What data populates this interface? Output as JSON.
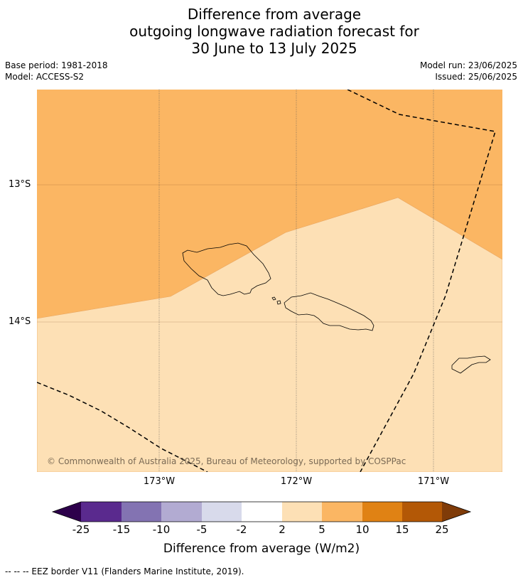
{
  "title_lines": [
    "Difference from average",
    "outgoing longwave radiation forecast for",
    "30 June to 13 July 2025"
  ],
  "meta": {
    "base_period": "Base period: 1981-2018",
    "model": "Model: ACCESS-S2",
    "model_run": "Model run: 23/06/2025",
    "issued": "Issued: 25/06/2025"
  },
  "map": {
    "lat_labels": [
      "13°S",
      "14°S"
    ],
    "lon_labels": [
      "173°W",
      "172°W",
      "171°W"
    ],
    "copyright": "© Commonwealth of Australia 2025, Bureau of Meteorology, supported by COSPPac",
    "colors": {
      "band_5_10": "#fbb663",
      "band_2_5": "#fde0b5",
      "coast": "#000000",
      "eez": "#000000"
    }
  },
  "colorbar": {
    "ticks": [
      "-25",
      "-15",
      "-10",
      "-5",
      "-2",
      "2",
      "5",
      "10",
      "15",
      "25"
    ],
    "colors": [
      "#2d004b",
      "#5a2a8e",
      "#8373b2",
      "#b2abd2",
      "#d8daeb",
      "#ffffff",
      "#fde0b5",
      "#fbb663",
      "#e08214",
      "#b35806",
      "#7f3b08"
    ],
    "title": "Difference from average (W/m2)"
  },
  "footnote": "-- -- -- EEZ border V11 (Flanders Marine Institute, 2019)."
}
